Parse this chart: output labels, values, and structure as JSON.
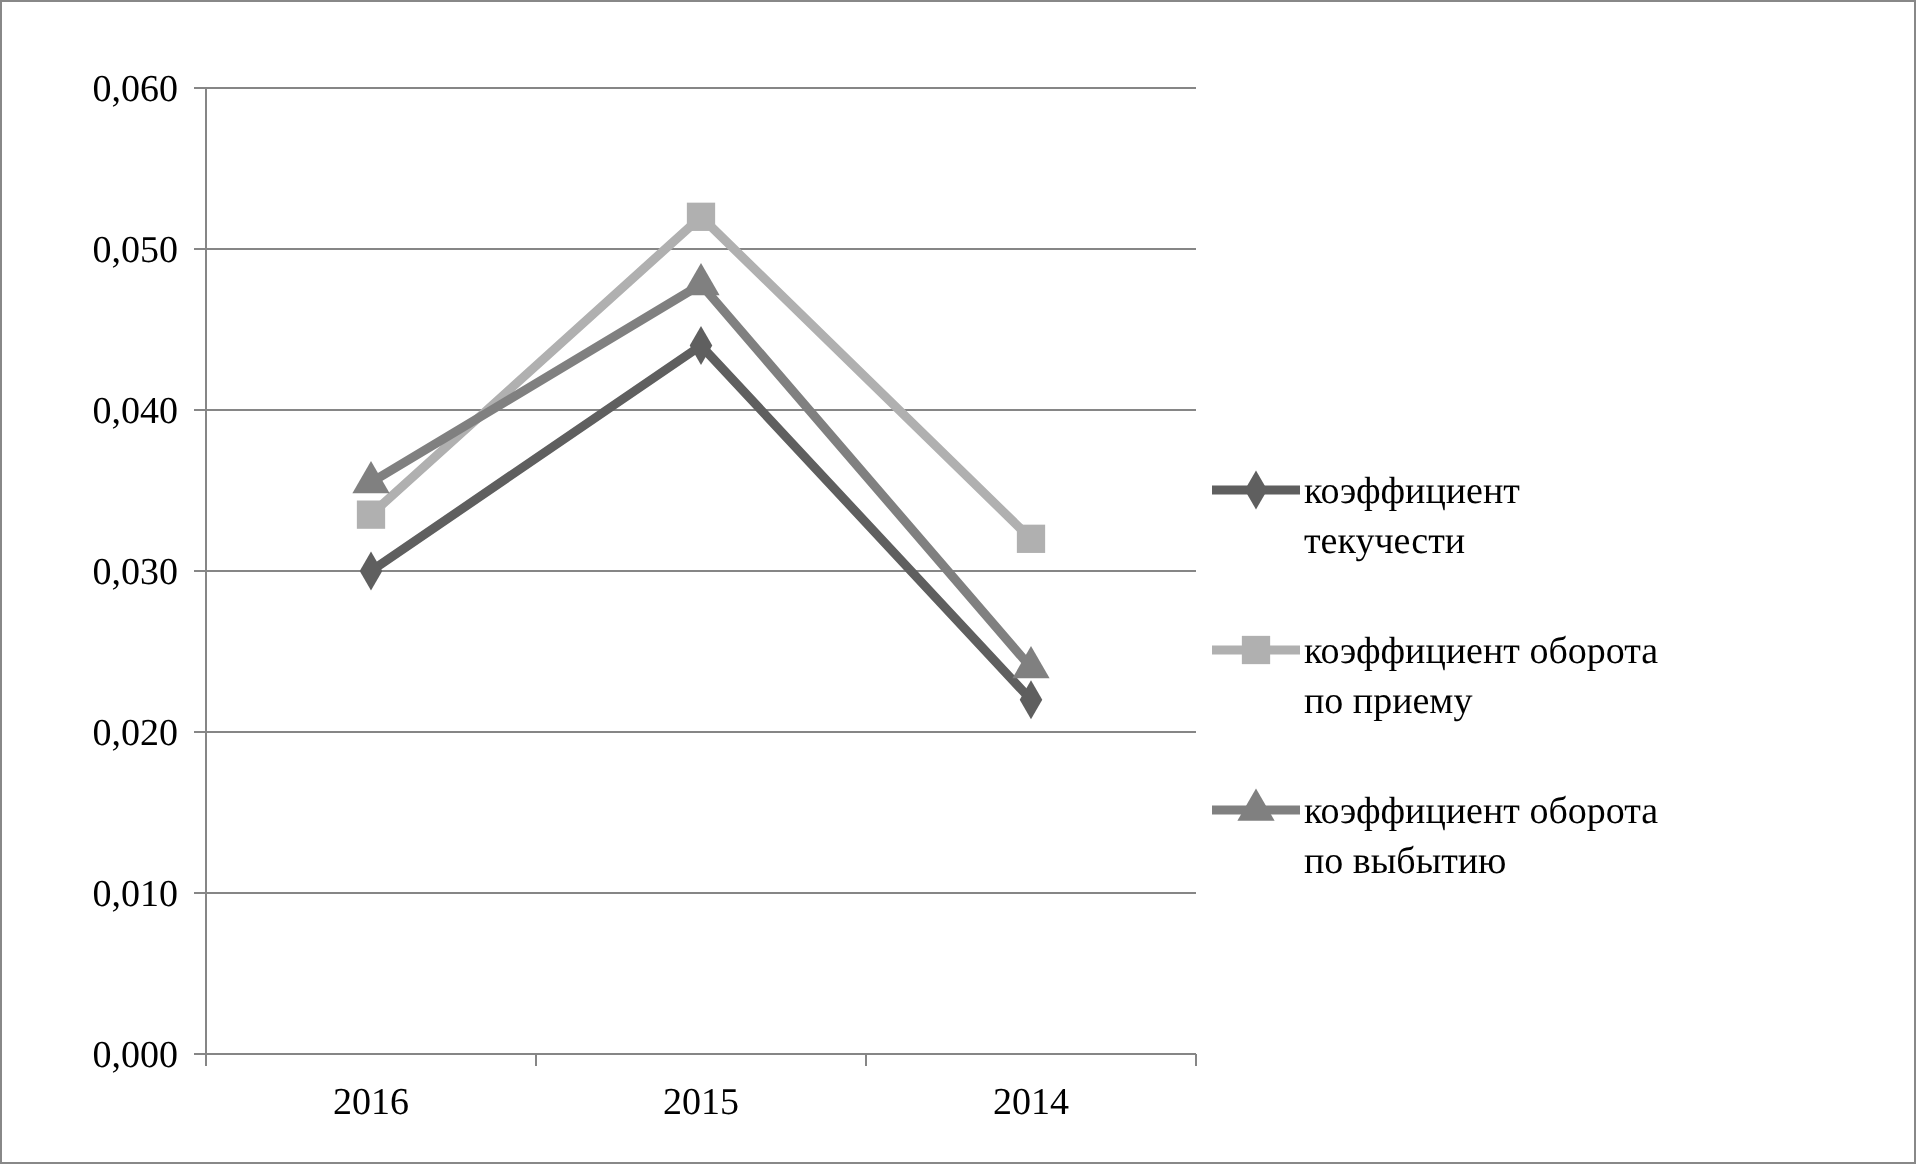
{
  "chart_data": {
    "type": "line",
    "categories": [
      "2016",
      "2015",
      "2014"
    ],
    "series": [
      {
        "name": "коэффициент текучести",
        "color": "#5f5f5f",
        "marker": "diamond",
        "values": [
          0.03,
          0.044,
          0.022
        ]
      },
      {
        "name": "коэффициент оборота по приему",
        "color": "#b0b0b0",
        "marker": "square",
        "values": [
          0.0335,
          0.052,
          0.032
        ]
      },
      {
        "name": "коэффициент оборота по выбытию",
        "color": "#808080",
        "marker": "triangle",
        "values": [
          0.0355,
          0.0478,
          0.024
        ]
      }
    ],
    "ylim": [
      0,
      0.06
    ],
    "yticks": [
      {
        "value": 0,
        "label": "0,000"
      },
      {
        "value": 0.01,
        "label": "0,010"
      },
      {
        "value": 0.02,
        "label": "0,020"
      },
      {
        "value": 0.03,
        "label": "0,030"
      },
      {
        "value": 0.04,
        "label": "0,040"
      },
      {
        "value": 0.05,
        "label": "0,050"
      },
      {
        "value": 0.06,
        "label": "0,060"
      }
    ],
    "grid": "y",
    "legend": "right"
  }
}
